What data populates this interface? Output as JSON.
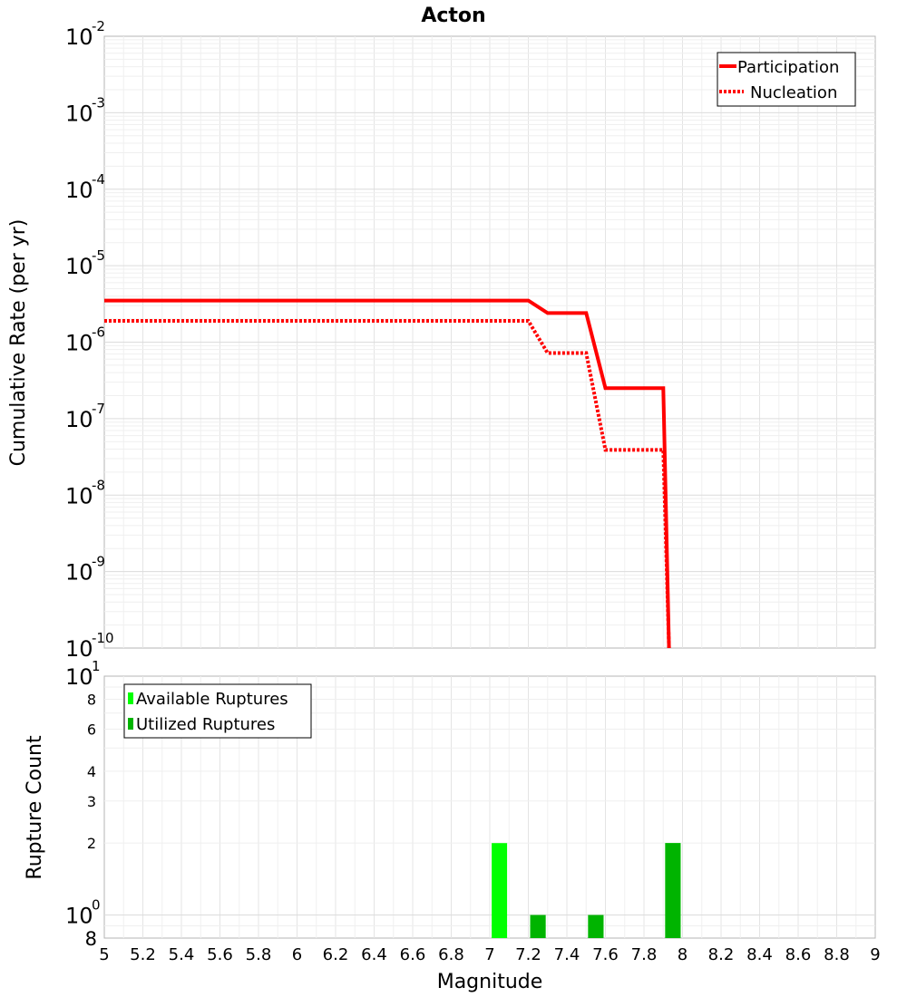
{
  "chart_data": [
    {
      "type": "line",
      "title": "Acton",
      "xlabel": "",
      "ylabel": "Cumulative Rate (per yr)",
      "xlim": [
        5,
        9
      ],
      "ylim": [
        1e-10,
        0.01
      ],
      "yscale": "log",
      "y_tick_base": "10",
      "y_ticks": [
        {
          "value": 0.01,
          "exp": "-2"
        },
        {
          "value": 0.001,
          "exp": "-3"
        },
        {
          "value": 0.0001,
          "exp": "-4"
        },
        {
          "value": 1e-05,
          "exp": "-5"
        },
        {
          "value": 1e-06,
          "exp": "-6"
        },
        {
          "value": 1e-07,
          "exp": "-7"
        },
        {
          "value": 1e-08,
          "exp": "-8"
        },
        {
          "value": 1e-09,
          "exp": "-9"
        },
        {
          "value": 1e-10,
          "exp": "-10"
        }
      ],
      "grid": true,
      "legend_position": "top-right",
      "series": [
        {
          "name": "Participation",
          "color": "#ff0000",
          "style": "solid",
          "x": [
            5.0,
            7.2,
            7.3,
            7.5,
            7.6,
            7.9,
            7.93
          ],
          "y": [
            3.5e-06,
            3.5e-06,
            2.4e-06,
            2.4e-06,
            2.5e-07,
            2.5e-07,
            1e-10
          ]
        },
        {
          "name": "Nucleation",
          "color": "#ff0000",
          "style": "dotted",
          "x": [
            5.0,
            7.2,
            7.3,
            7.5,
            7.6,
            7.9,
            7.93
          ],
          "y": [
            1.9e-06,
            1.9e-06,
            7.2e-07,
            7.2e-07,
            3.9e-08,
            3.9e-08,
            1e-10
          ]
        }
      ]
    },
    {
      "type": "bar",
      "title": "",
      "xlabel": "Magnitude",
      "ylabel": "Rupture Count",
      "xlim": [
        5,
        9
      ],
      "x_ticks": [
        "5",
        "5.2",
        "5.4",
        "5.6",
        "5.8",
        "6",
        "6.2",
        "6.4",
        "6.6",
        "6.8",
        "7",
        "7.2",
        "7.4",
        "7.6",
        "7.8",
        "8",
        "8.2",
        "8.4",
        "8.6",
        "8.8",
        "9"
      ],
      "ylim": [
        0.8,
        10
      ],
      "yscale": "log",
      "y_major_ticks": [
        {
          "value": 1,
          "base": "10",
          "exp": "0"
        },
        {
          "value": 10,
          "base": "10",
          "exp": "1"
        }
      ],
      "y_minor_ticks": [
        {
          "value": 0.8,
          "label": "8"
        },
        {
          "value": 2,
          "label": "2"
        },
        {
          "value": 3,
          "label": "3"
        },
        {
          "value": 4,
          "label": "4"
        },
        {
          "value": 6,
          "label": "6"
        },
        {
          "value": 8,
          "label": "8"
        }
      ],
      "grid": true,
      "legend_position": "top-left",
      "bar_width": 0.08,
      "series": [
        {
          "name": "Available Ruptures",
          "color": "#00ff00",
          "x": [
            7.05,
            7.25,
            7.55,
            7.95
          ],
          "values": [
            2,
            1,
            1,
            2
          ]
        },
        {
          "name": "Utilized Ruptures",
          "color": "#00b400",
          "x": [
            7.25,
            7.55,
            7.95
          ],
          "values": [
            1,
            1,
            2
          ]
        }
      ]
    }
  ]
}
